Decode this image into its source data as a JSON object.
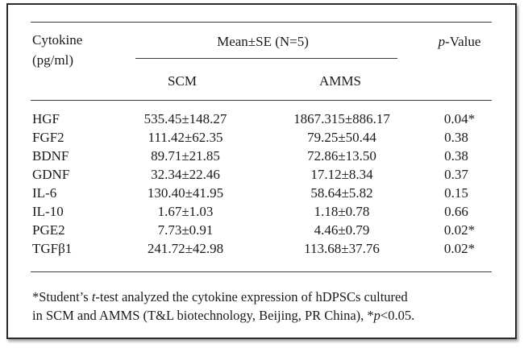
{
  "table": {
    "header": {
      "cytokine_label": "Cytokine",
      "unit_label": "(pg/ml)",
      "mean_label": "Mean±SE (N=5)",
      "scm_label": "SCM",
      "amms_label": "AMMS",
      "p_label_italic": "p",
      "p_label_rest": "-Value"
    },
    "rows": [
      {
        "cytokine": "HGF",
        "scm": "535.45±148.27",
        "amms": "1867.315±886.17",
        "p": "0.04*"
      },
      {
        "cytokine": "FGF2",
        "scm": "111.42±62.35",
        "amms": "79.25±50.44",
        "p": "0.38"
      },
      {
        "cytokine": "BDNF",
        "scm": "89.71±21.85",
        "amms": "72.86±13.50",
        "p": "0.38"
      },
      {
        "cytokine": "GDNF",
        "scm": "32.34±22.46",
        "amms": "17.12±8.34",
        "p": "0.37"
      },
      {
        "cytokine": "IL-6",
        "scm": "130.40±41.95",
        "amms": "58.64±5.82",
        "p": "0.15"
      },
      {
        "cytokine": "IL-10",
        "scm": "1.67±1.03",
        "amms": "1.18±0.78",
        "p": "0.66"
      },
      {
        "cytokine": "PGE2",
        "scm": "7.73±0.91",
        "amms": "4.46±0.79",
        "p": "0.02*"
      },
      {
        "cytokine": "TGFβ1",
        "scm": "241.72±42.98",
        "amms": "113.68±37.76",
        "p": "0.02*"
      }
    ]
  },
  "footnote": {
    "line1_a": "*Student’s ",
    "line1_t": "t",
    "line1_b": "-test analyzed the cytokine expression of hDPSCs cultured",
    "line2_a": "in SCM and AMMS (T&L biotechnology, Beijing, PR China), *",
    "line2_p": "p",
    "line2_b": "<0.05."
  }
}
